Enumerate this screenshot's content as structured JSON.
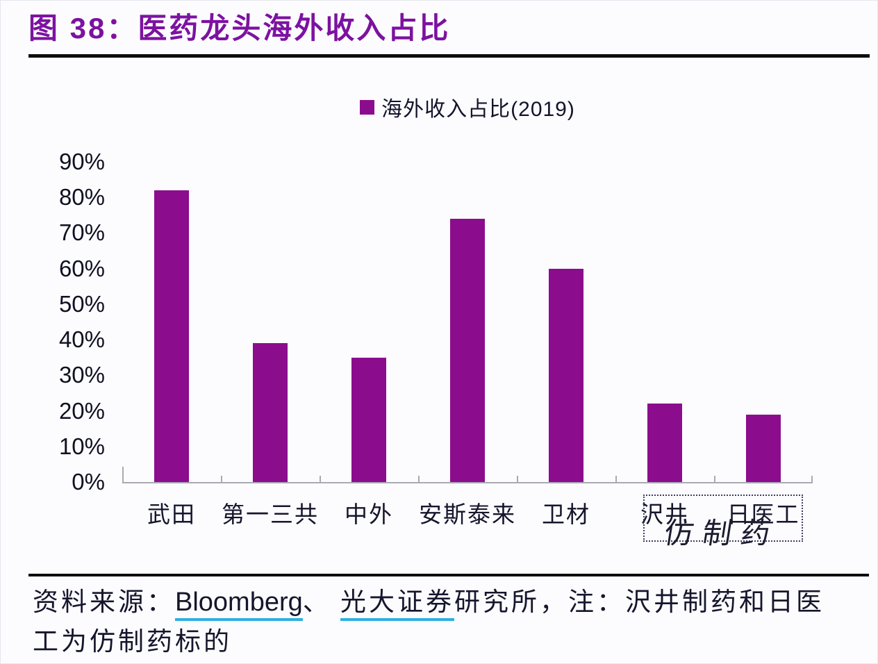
{
  "title": "图 38：医药龙头海外收入占比",
  "chart_data": {
    "type": "bar",
    "title": "海外收入占比(2019)",
    "categories": [
      "武田",
      "第一三共",
      "中外",
      "安斯泰来",
      "卫材",
      "沢井",
      "日医工"
    ],
    "values": [
      82,
      39,
      35,
      74,
      60,
      22,
      19
    ],
    "unit": "%",
    "xlabel": "",
    "ylabel": "",
    "ylim": [
      0,
      90
    ],
    "yticks": [
      "90%",
      "80%",
      "70%",
      "60%",
      "50%",
      "40%",
      "30%",
      "20%",
      "10%",
      "0%"
    ],
    "grid": false,
    "legend_position": "top-center",
    "annotation": {
      "label": "仿制药",
      "applies_to": [
        "沢井",
        "日医工"
      ],
      "style": "dotted-box"
    }
  },
  "footer": {
    "prefix": "资料来源：",
    "source1": "Bloomberg",
    "separator": "、 ",
    "source2": "光大证券",
    "line1_rest": "研究所，注：沢井制药和日医",
    "line2": "工为仿制药标的"
  },
  "colors": {
    "bar": "#8b0d8e",
    "title": "#7c12a0",
    "underline": "#2cb0e2",
    "axis": "#a9a9b4",
    "text": "#15152c",
    "annotation_border": "#3b3b63"
  }
}
